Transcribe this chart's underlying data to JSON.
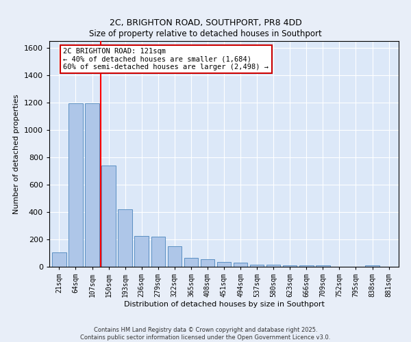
{
  "title1": "2C, BRIGHTON ROAD, SOUTHPORT, PR8 4DD",
  "title2": "Size of property relative to detached houses in Southport",
  "xlabel": "Distribution of detached houses by size in Southport",
  "ylabel": "Number of detached properties",
  "categories": [
    "21sqm",
    "64sqm",
    "107sqm",
    "150sqm",
    "193sqm",
    "236sqm",
    "279sqm",
    "322sqm",
    "365sqm",
    "408sqm",
    "451sqm",
    "494sqm",
    "537sqm",
    "580sqm",
    "623sqm",
    "666sqm",
    "709sqm",
    "752sqm",
    "795sqm",
    "838sqm",
    "881sqm"
  ],
  "values": [
    105,
    1195,
    1195,
    740,
    420,
    225,
    220,
    150,
    65,
    55,
    35,
    30,
    15,
    15,
    10,
    10,
    8,
    0,
    0,
    10,
    0
  ],
  "bar_color": "#aec6e8",
  "bar_edge_color": "#5a8fc2",
  "red_line_x": 2.5,
  "annotation_text": "2C BRIGHTON ROAD: 121sqm\n← 40% of detached houses are smaller (1,684)\n60% of semi-detached houses are larger (2,498) →",
  "annotation_box_color": "#ffffff",
  "annotation_box_edge": "#cc0000",
  "ylim": [
    0,
    1650
  ],
  "yticks": [
    0,
    200,
    400,
    600,
    800,
    1000,
    1200,
    1400,
    1600
  ],
  "bg_color": "#dce8f8",
  "fig_bg_color": "#e8eef8",
  "footer1": "Contains HM Land Registry data © Crown copyright and database right 2025.",
  "footer2": "Contains public sector information licensed under the Open Government Licence v3.0."
}
